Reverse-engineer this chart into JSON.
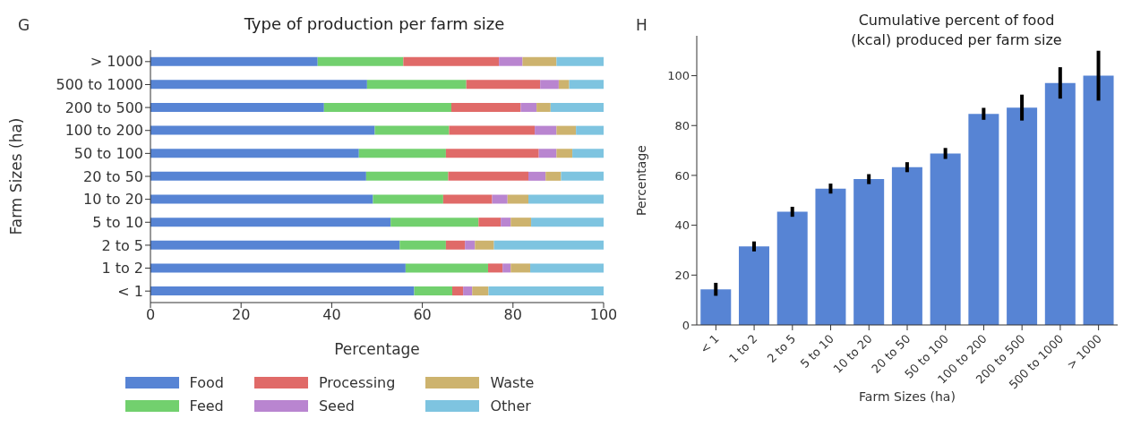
{
  "chart_data": [
    {
      "type": "bar",
      "orientation": "horizontal",
      "stacked": true,
      "title": "Type of production per farm size",
      "xlabel": "Percentage",
      "ylabel": "Farm Sizes (ha)",
      "annotations": [
        "G"
      ],
      "legend": "bottom",
      "categories": [
        "> 1000",
        "500 to 1000",
        "200 to 500",
        "100 to 200",
        "50 to 100",
        "20 to 50",
        "10 to 20",
        "5 to 10",
        "2 to 5",
        "1 to 2",
        "< 1"
      ],
      "xlim": [
        0,
        100
      ],
      "xticks": [
        0,
        20,
        40,
        60,
        80,
        100
      ],
      "series": [
        {
          "name": "Food",
          "color": "#5784d4",
          "values": [
            36.9,
            47.8,
            38.3,
            49.5,
            46.0,
            47.6,
            49.1,
            53.0,
            55.0,
            56.3,
            58.2
          ]
        },
        {
          "name": "Feed",
          "color": "#72d06e",
          "values": [
            18.9,
            21.9,
            28.1,
            16.4,
            19.2,
            18.1,
            15.5,
            19.4,
            10.2,
            18.2,
            8.4
          ]
        },
        {
          "name": "Processing",
          "color": "#e06a68",
          "values": [
            21.1,
            16.3,
            15.3,
            18.9,
            20.5,
            17.7,
            10.8,
            4.9,
            4.2,
            3.2,
            2.4
          ]
        },
        {
          "name": "Seed",
          "color": "#b985d0",
          "values": [
            5.2,
            4.1,
            3.5,
            4.8,
            3.9,
            3.8,
            3.4,
            2.2,
            2.2,
            1.8,
            2.0
          ]
        },
        {
          "name": "Waste",
          "color": "#cdb36e",
          "values": [
            7.5,
            2.3,
            3.1,
            4.3,
            3.5,
            3.4,
            4.6,
            4.5,
            4.2,
            4.3,
            3.6
          ]
        },
        {
          "name": "Other",
          "color": "#7ec4e0",
          "values": [
            10.4,
            7.6,
            11.7,
            6.1,
            6.9,
            9.4,
            16.6,
            16.0,
            24.2,
            16.2,
            25.4
          ]
        }
      ]
    },
    {
      "type": "bar",
      "title": "Cumulative percent of food (kcal) produced per farm size",
      "xlabel": "Farm Sizes (ha)",
      "ylabel": "Percentage",
      "annotations": [
        "H"
      ],
      "categories": [
        "< 1",
        "1 to 2",
        "2 to 5",
        "5 to 10",
        "10 to 20",
        "20 to 50",
        "50 to 100",
        "100 to 200",
        "200 to 500",
        "500 to 1000",
        "> 1000"
      ],
      "values": [
        14.3,
        31.5,
        45.4,
        54.7,
        58.5,
        63.3,
        68.8,
        84.7,
        87.2,
        97.1,
        100
      ],
      "errors": [
        2.6,
        2,
        2,
        2,
        2,
        2,
        2.2,
        2.4,
        5.2,
        6.3,
        10
      ],
      "color": "#5784d4",
      "ylim": [
        0,
        116
      ],
      "yticks": [
        0,
        20,
        40,
        60,
        80,
        100
      ]
    }
  ]
}
